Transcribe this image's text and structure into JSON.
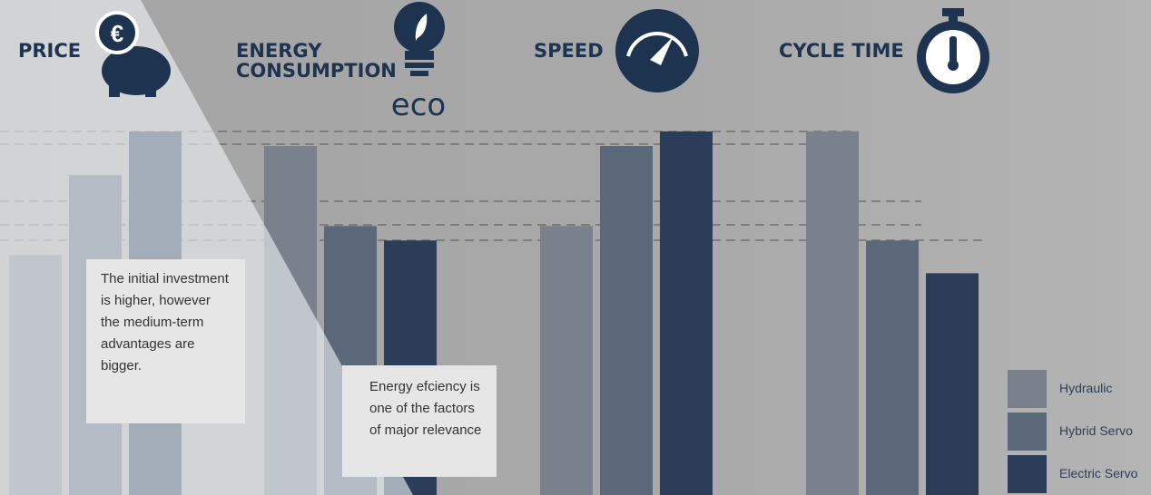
{
  "chart_data": {
    "type": "bar",
    "categories": [
      "PRICE",
      "ENERGY CONSUMPTION",
      "SPEED",
      "CYCLE TIME"
    ],
    "icon_text": "eco",
    "series": [
      {
        "name": "Hydraulic",
        "color": "#7a818d",
        "values": [
          66,
          96,
          74,
          100
        ]
      },
      {
        "name": "Hybrid Servo",
        "color": "#5b6879",
        "values": [
          88,
          74,
          96,
          70
        ]
      },
      {
        "name": "Electric Servo",
        "color": "#2b3d59",
        "values": [
          100,
          70,
          100,
          61
        ]
      }
    ],
    "ylim": [
      0,
      100
    ],
    "annotations": [
      "The initial investment is higher, however the medium-term advantages are bigger.",
      "Energy efciency is one of the factors of major relevance"
    ]
  }
}
